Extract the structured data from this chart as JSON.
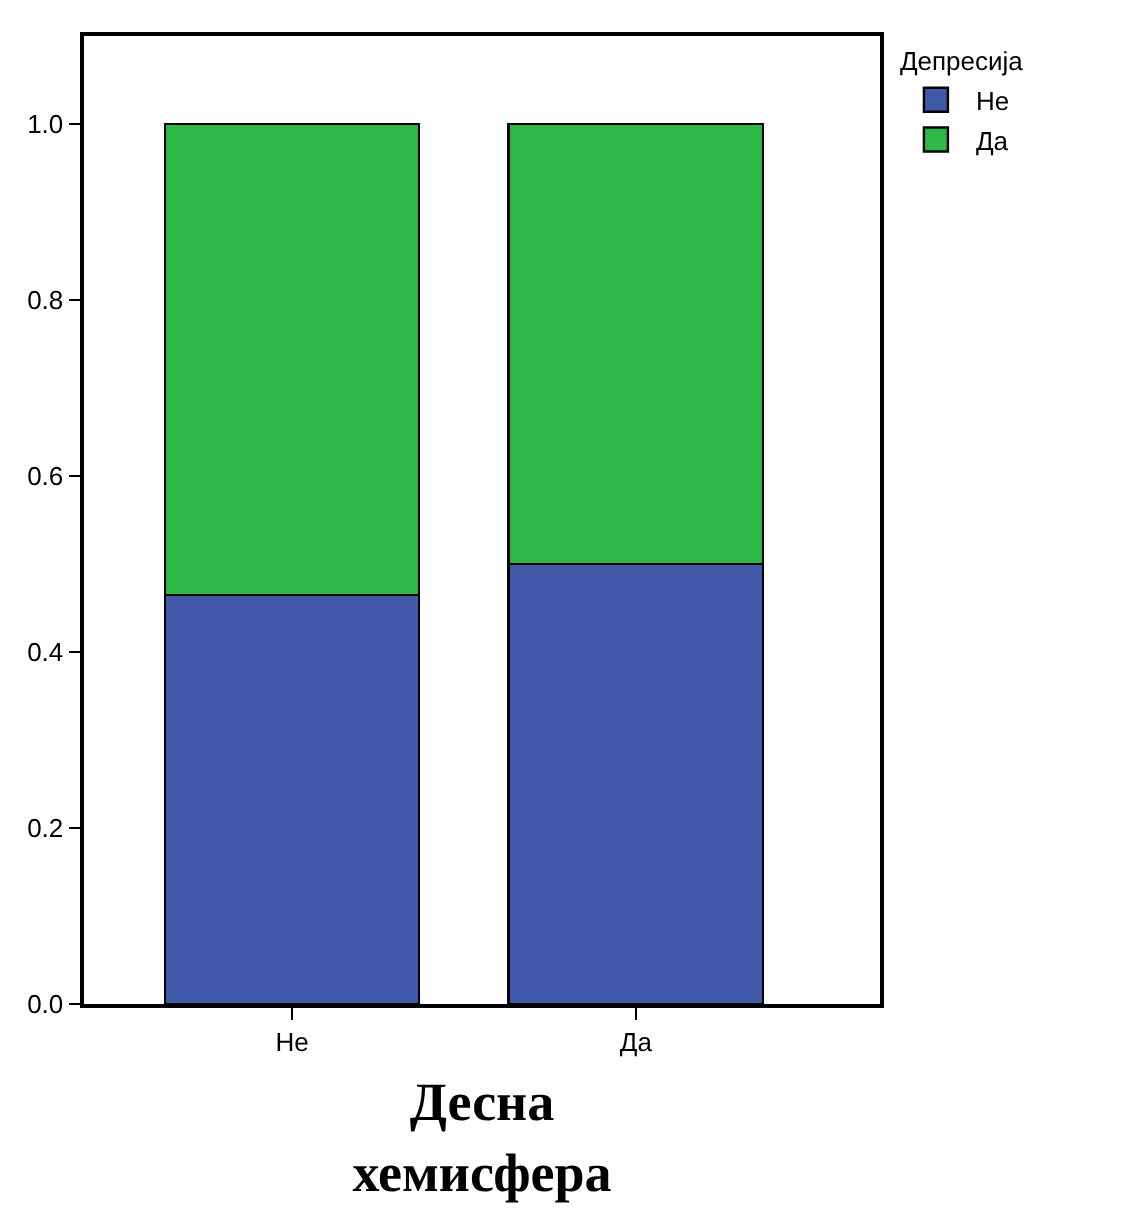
{
  "chart_data": {
    "type": "bar",
    "stacked": true,
    "xlabel": "Десна\nхемисфера",
    "legend_title": "Депресија",
    "categories": [
      "Не",
      "Да"
    ],
    "series": [
      {
        "name": "Не",
        "color": "#3f58a8",
        "values": [
          0.465,
          0.5
        ]
      },
      {
        "name": "Да",
        "color": "#2fb84a",
        "values": [
          0.535,
          0.5
        ]
      }
    ],
    "ylim": [
      0,
      1.1
    ],
    "yticks": [
      {
        "value": 0,
        "label": "0.0"
      },
      {
        "value": 0.2,
        "label": "0.2"
      },
      {
        "value": 0.4,
        "label": "0.4"
      },
      {
        "value": 0.6,
        "label": "0.6"
      },
      {
        "value": 0.8,
        "label": "0.8"
      },
      {
        "value": 1,
        "label": "1.0"
      }
    ],
    "grid": false,
    "legend": "top right"
  }
}
